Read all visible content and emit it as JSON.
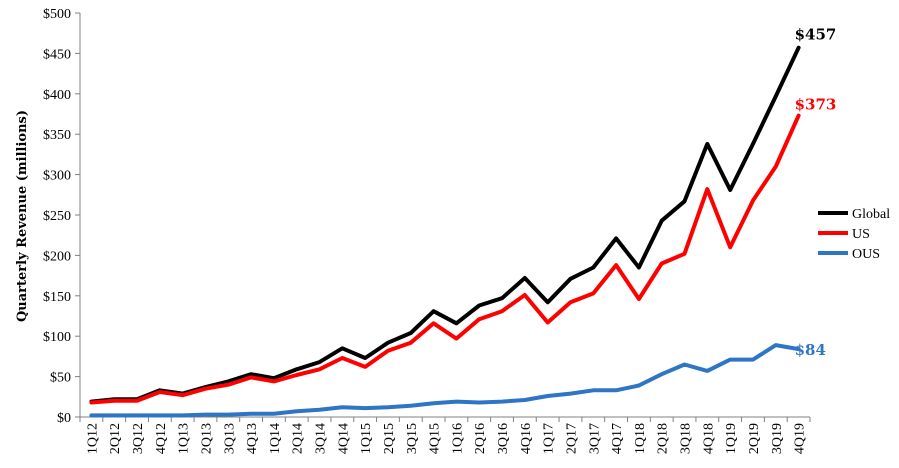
{
  "chart_data": {
    "type": "line",
    "ylabel": "Quarterly Revenue (millions)",
    "ylim": [
      0,
      500
    ],
    "y_ticks": [
      "$0",
      "$50",
      "$100",
      "$150",
      "$200",
      "$250",
      "$300",
      "$350",
      "$400",
      "$450",
      "$500"
    ],
    "grid": false,
    "legend_position": "right",
    "categories": [
      "1Q12",
      "2Q12",
      "3Q12",
      "4Q12",
      "1Q13",
      "2Q13",
      "3Q13",
      "4Q13",
      "1Q14",
      "2Q14",
      "3Q14",
      "4Q14",
      "1Q15",
      "2Q15",
      "3Q15",
      "4Q15",
      "1Q16",
      "2Q16",
      "3Q16",
      "4Q16",
      "1Q17",
      "2Q17",
      "3Q17",
      "4Q17",
      "1Q18",
      "2Q18",
      "3Q18",
      "4Q18",
      "1Q19",
      "2Q19",
      "3Q19",
      "4Q19"
    ],
    "series": [
      {
        "name": "Global",
        "color": "#000000",
        "end_label": "$457",
        "values": [
          19,
          22,
          22,
          33,
          29,
          37,
          44,
          53,
          48,
          59,
          68,
          85,
          73,
          92,
          104,
          131,
          116,
          138,
          147,
          172,
          142,
          171,
          185,
          221,
          185,
          243,
          267,
          338,
          281,
          338,
          397,
          457
        ]
      },
      {
        "name": "US",
        "color": "#ff0000",
        "end_label": "$373",
        "values": [
          18,
          20,
          20,
          31,
          27,
          35,
          40,
          49,
          44,
          52,
          59,
          73,
          62,
          82,
          92,
          116,
          97,
          121,
          131,
          151,
          117,
          142,
          153,
          188,
          146,
          190,
          202,
          282,
          210,
          268,
          310,
          373
        ]
      },
      {
        "name": "OUS",
        "color": "#2e75c6",
        "end_label": "$84",
        "values": [
          2,
          2,
          2,
          2,
          2,
          3,
          3,
          4,
          4,
          7,
          9,
          12,
          11,
          12,
          14,
          17,
          19,
          18,
          19,
          21,
          26,
          29,
          33,
          33,
          39,
          53,
          65,
          57,
          71,
          71,
          89,
          84
        ]
      }
    ]
  }
}
